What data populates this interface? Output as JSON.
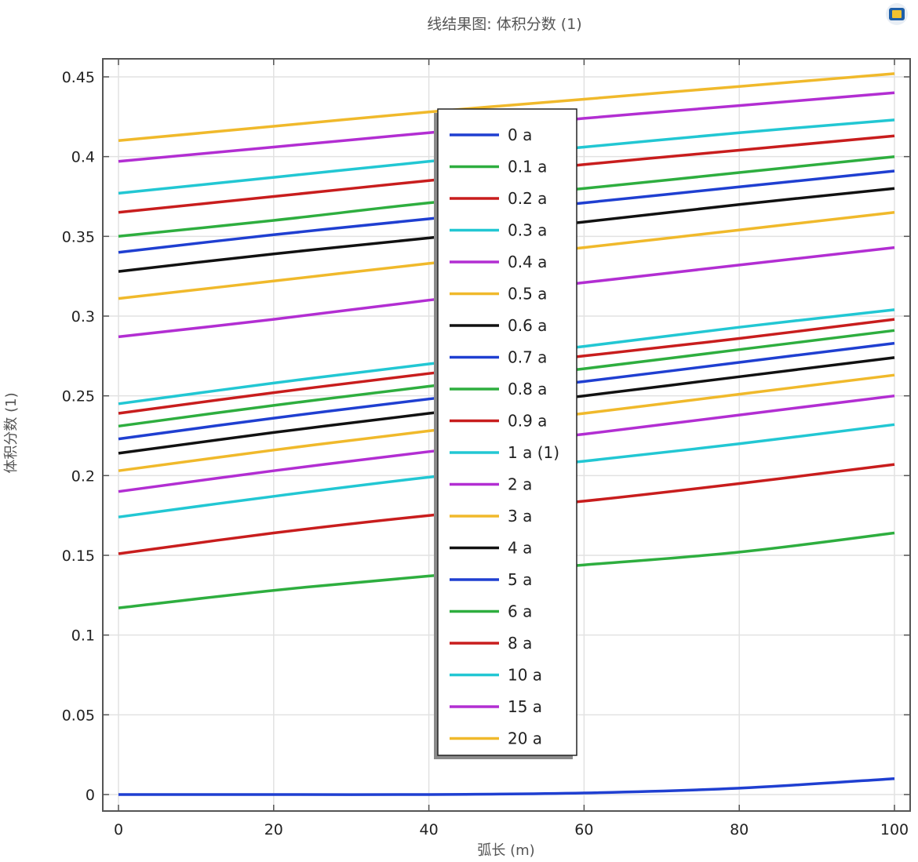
{
  "window": {
    "toolbar_icon": "plot-window-icon"
  },
  "chart_data": {
    "type": "line",
    "title": "线结果图: 体积分数 (1)",
    "xlabel": "弧长 (m)",
    "ylabel": "体积分数 (1)",
    "xlim": [
      0,
      100
    ],
    "ylim": [
      0,
      0.45
    ],
    "xticks": [
      0,
      20,
      40,
      60,
      80,
      100
    ],
    "xtick_labels": [
      "0",
      "20",
      "40",
      "60",
      "80",
      "100"
    ],
    "yticks": [
      0,
      0.05,
      0.1,
      0.15,
      0.2,
      0.25,
      0.3,
      0.35,
      0.4,
      0.45
    ],
    "ytick_labels": [
      "0",
      "0.05",
      "0.1",
      "0.15",
      "0.2",
      "0.25",
      "0.3",
      "0.35",
      "0.4",
      "0.45"
    ],
    "grid": true,
    "legend_position": "center",
    "x": [
      0,
      20,
      40,
      60,
      80,
      100
    ],
    "series": [
      {
        "name": "0 a",
        "color": "#1f3fd1",
        "values": [
          0.0,
          0.0,
          0.0,
          0.001,
          0.004,
          0.01
        ]
      },
      {
        "name": "0.1 a",
        "color": "#2eae3f",
        "values": [
          0.117,
          0.128,
          0.137,
          0.144,
          0.152,
          0.164
        ]
      },
      {
        "name": "0.2 a",
        "color": "#c81d1d",
        "values": [
          0.151,
          0.164,
          0.175,
          0.184,
          0.195,
          0.207
        ]
      },
      {
        "name": "0.3 a",
        "color": "#22c7d3",
        "values": [
          0.174,
          0.187,
          0.199,
          0.209,
          0.22,
          0.232
        ]
      },
      {
        "name": "0.4 a",
        "color": "#b22ed2",
        "values": [
          0.19,
          0.203,
          0.215,
          0.226,
          0.238,
          0.25
        ]
      },
      {
        "name": "0.5 a",
        "color": "#f0b92b",
        "values": [
          0.203,
          0.216,
          0.228,
          0.239,
          0.251,
          0.263
        ]
      },
      {
        "name": "0.6 a",
        "color": "#111111",
        "values": [
          0.214,
          0.227,
          0.239,
          0.25,
          0.262,
          0.274
        ]
      },
      {
        "name": "0.7 a",
        "color": "#1f3fd1",
        "values": [
          0.223,
          0.236,
          0.248,
          0.259,
          0.271,
          0.283
        ]
      },
      {
        "name": "0.8 a",
        "color": "#2eae3f",
        "values": [
          0.231,
          0.244,
          0.256,
          0.267,
          0.279,
          0.291
        ]
      },
      {
        "name": "0.9 a",
        "color": "#c81d1d",
        "values": [
          0.239,
          0.252,
          0.264,
          0.275,
          0.286,
          0.298
        ]
      },
      {
        "name": "1 a (1)",
        "color": "#22c7d3",
        "values": [
          0.245,
          0.258,
          0.27,
          0.281,
          0.293,
          0.304
        ]
      },
      {
        "name": "2 a",
        "color": "#b22ed2",
        "values": [
          0.287,
          0.298,
          0.31,
          0.321,
          0.332,
          0.343
        ]
      },
      {
        "name": "3 a",
        "color": "#f0b92b",
        "values": [
          0.311,
          0.322,
          0.333,
          0.343,
          0.354,
          0.365
        ]
      },
      {
        "name": "4 a",
        "color": "#111111",
        "values": [
          0.328,
          0.339,
          0.349,
          0.359,
          0.37,
          0.38
        ]
      },
      {
        "name": "5 a",
        "color": "#1f3fd1",
        "values": [
          0.34,
          0.351,
          0.361,
          0.371,
          0.381,
          0.391
        ]
      },
      {
        "name": "6 a",
        "color": "#2eae3f",
        "values": [
          0.35,
          0.36,
          0.371,
          0.38,
          0.39,
          0.4
        ]
      },
      {
        "name": "8 a",
        "color": "#c81d1d",
        "values": [
          0.365,
          0.375,
          0.385,
          0.395,
          0.404,
          0.413
        ]
      },
      {
        "name": "10 a",
        "color": "#22c7d3",
        "values": [
          0.377,
          0.387,
          0.397,
          0.406,
          0.415,
          0.423
        ]
      },
      {
        "name": "15 a",
        "color": "#b22ed2",
        "values": [
          0.397,
          0.406,
          0.415,
          0.424,
          0.432,
          0.44
        ]
      },
      {
        "name": "20 a",
        "color": "#f0b92b",
        "values": [
          0.41,
          0.419,
          0.428,
          0.436,
          0.444,
          0.452
        ]
      }
    ]
  }
}
